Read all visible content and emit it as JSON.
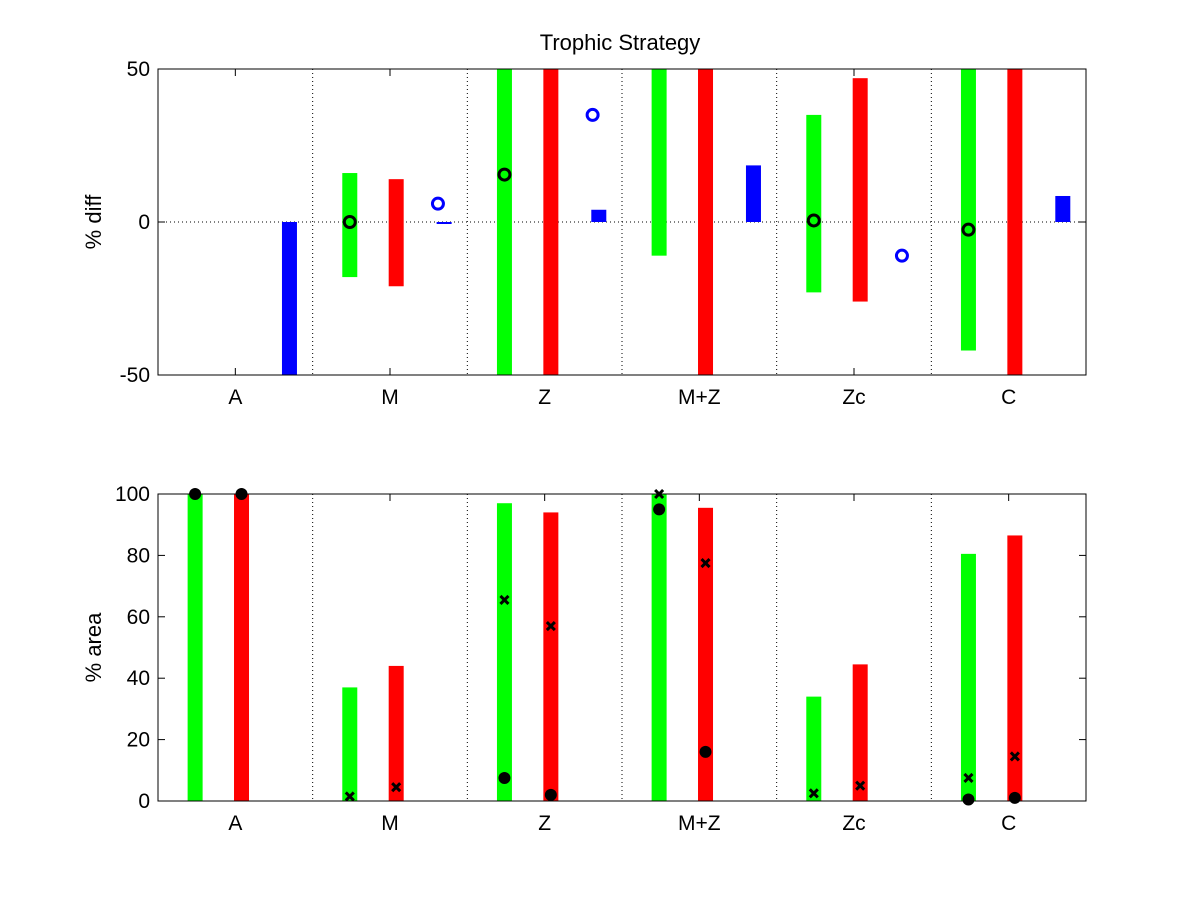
{
  "title": "Trophic Strategy",
  "colors": {
    "green": "#00ff00",
    "red": "#ff0000",
    "blue": "#0000ff",
    "marker": "#000000",
    "circle_blue": "#0000ff"
  },
  "chart_data": [
    {
      "type": "bar",
      "ylabel": "% diff",
      "ylim": [
        -50,
        50
      ],
      "yticks": [
        -50,
        0,
        50
      ],
      "zero_line": true,
      "grid": "vertical dotted separators between categories",
      "categories": [
        "A",
        "M",
        "Z",
        "M+Z",
        "Zc",
        "C"
      ],
      "green_range": [
        null,
        [
          -18,
          16
        ],
        [
          -50,
          50
        ],
        [
          -11,
          50
        ],
        [
          -23,
          35
        ],
        [
          -42,
          50
        ]
      ],
      "red_range": [
        null,
        [
          -21,
          14
        ],
        [
          -50,
          50
        ],
        [
          -50,
          50
        ],
        [
          -26,
          47
        ],
        [
          -50,
          50
        ]
      ],
      "blue_bar": [
        -50,
        0,
        4,
        18.5,
        null,
        8.5
      ],
      "black_circle": [
        null,
        0,
        15.5,
        null,
        0.5,
        -2.5
      ],
      "blue_circle": [
        null,
        6,
        35,
        null,
        -11,
        null
      ]
    },
    {
      "type": "bar",
      "ylabel": "% area",
      "ylim": [
        0,
        100
      ],
      "yticks": [
        0,
        20,
        40,
        60,
        80,
        100
      ],
      "grid": "vertical dotted separators between categories",
      "categories": [
        "A",
        "M",
        "Z",
        "M+Z",
        "Zc",
        "C"
      ],
      "green_bar": [
        100,
        37,
        97,
        100,
        34,
        80.5
      ],
      "red_bar": [
        100,
        44,
        94,
        95.5,
        44.5,
        86.5
      ],
      "green_dot": [
        100,
        null,
        7.5,
        95,
        null,
        0.5
      ],
      "green_x": [
        null,
        1.5,
        65.5,
        100,
        2.5,
        7.5
      ],
      "red_dot": [
        100,
        null,
        2,
        16,
        null,
        1
      ],
      "red_x": [
        null,
        4.5,
        57,
        77.5,
        5,
        14.5
      ]
    }
  ]
}
